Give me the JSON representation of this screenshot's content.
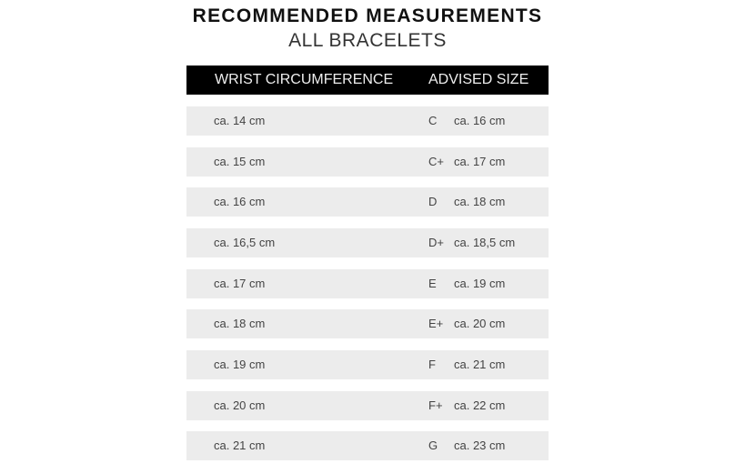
{
  "title": "RECOMMENDED MEASUREMENTS",
  "subtitle": "ALL BRACELETS",
  "header": {
    "wrist": "WRIST CIRCUMFERENCE",
    "size": "ADVISED SIZE"
  },
  "rows": [
    {
      "wrist": "ca. 14 cm",
      "size": "C",
      "length": "ca. 16 cm"
    },
    {
      "wrist": "ca. 15 cm",
      "size": "C+",
      "length": "ca. 17 cm"
    },
    {
      "wrist": "ca. 16 cm",
      "size": "D",
      "length": "ca. 18 cm"
    },
    {
      "wrist": "ca. 16,5 cm",
      "size": "D+",
      "length": "ca. 18,5 cm"
    },
    {
      "wrist": "ca. 17 cm",
      "size": "E",
      "length": "ca. 19 cm"
    },
    {
      "wrist": "ca. 18 cm",
      "size": "E+",
      "length": "ca. 20 cm"
    },
    {
      "wrist": "ca. 19 cm",
      "size": "F",
      "length": "ca. 21 cm"
    },
    {
      "wrist": "ca. 20 cm",
      "size": "F+",
      "length": "ca. 22 cm"
    },
    {
      "wrist": "ca. 21 cm",
      "size": "G",
      "length": "ca. 23 cm"
    }
  ]
}
